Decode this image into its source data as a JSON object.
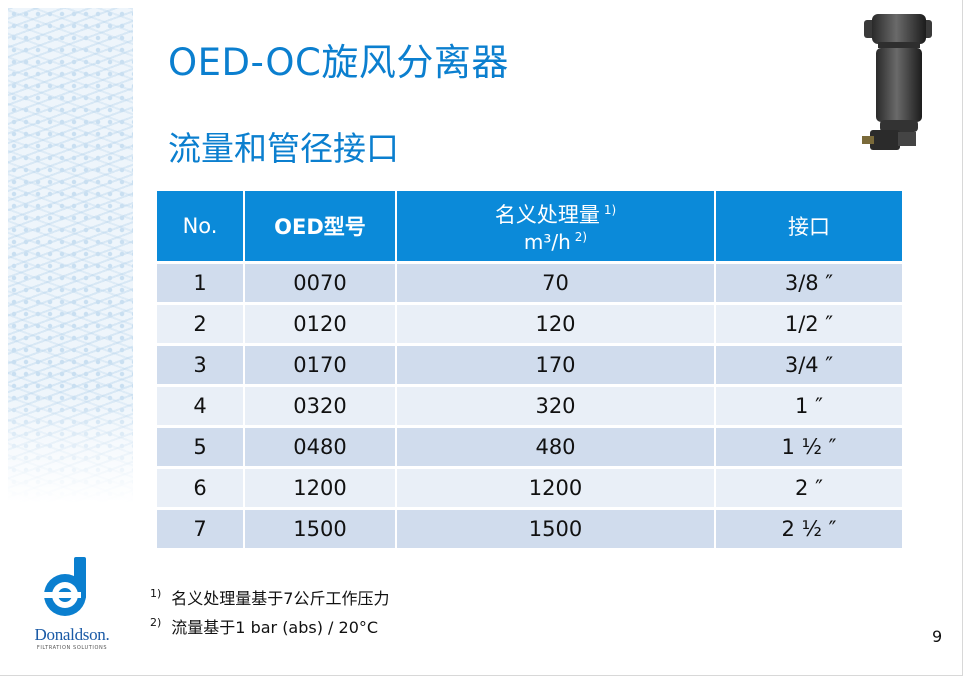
{
  "slide": {
    "title": "OED-OC旋风分离器",
    "subtitle": "流量和管径接口",
    "page_number": "9"
  },
  "table": {
    "headers": {
      "no": "No.",
      "model": "OED型号",
      "flow_line1": "名义处理量",
      "flow_line1_fn": "1)",
      "flow_line2": "m³/h",
      "flow_line2_fn": "2)",
      "port": "接口"
    },
    "rows": [
      {
        "no": "1",
        "model": "0070",
        "flow": "70",
        "port": "3/8 ″"
      },
      {
        "no": "2",
        "model": "0120",
        "flow": "120",
        "port": "1/2 ″"
      },
      {
        "no": "3",
        "model": "0170",
        "flow": "170",
        "port": "3/4 ″"
      },
      {
        "no": "4",
        "model": "0320",
        "flow": "320",
        "port": "1 ″"
      },
      {
        "no": "5",
        "model": "0480",
        "flow": "480",
        "port": "1 ½ ″"
      },
      {
        "no": "6",
        "model": "1200",
        "flow": "1200",
        "port": "2 ″"
      },
      {
        "no": "7",
        "model": "1500",
        "flow": "1500",
        "port": "2 ½ ″"
      }
    ]
  },
  "footnotes": [
    {
      "mark": "1)",
      "text": "名义处理量基于7公斤工作压力"
    },
    {
      "mark": "2)",
      "text": "流量基于1 bar (abs) / 20°C"
    }
  ],
  "logo": {
    "name": "Donaldson.",
    "tagline": "FILTRATION SOLUTIONS"
  },
  "colors": {
    "accent": "#0b7fcf",
    "header_bg": "#0b8ad9",
    "row_dark": "#d0dced",
    "row_light": "#e9eff7"
  }
}
